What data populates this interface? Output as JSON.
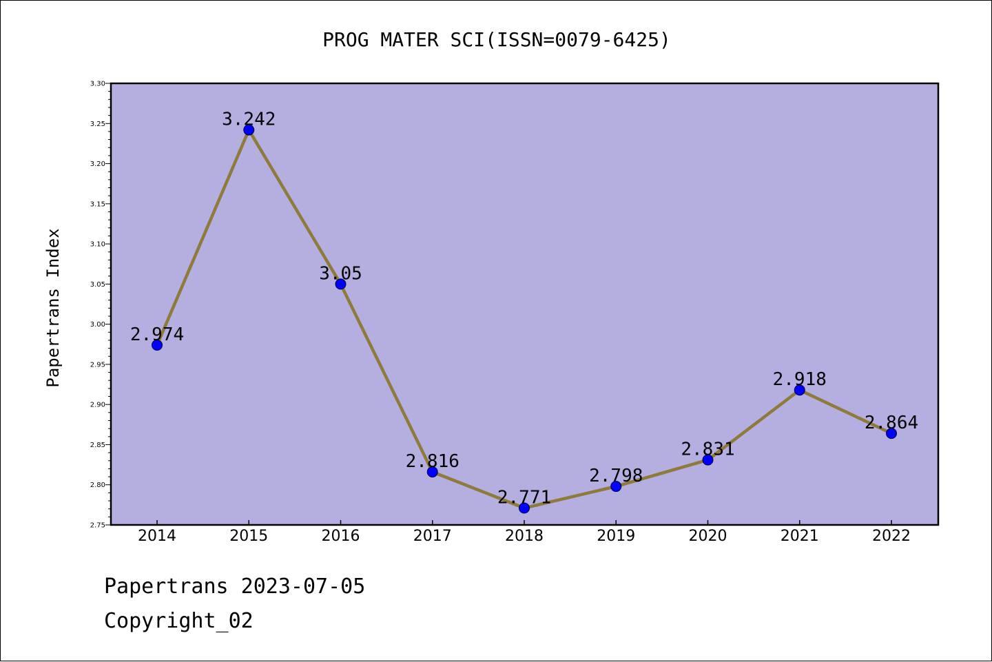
{
  "chart_data": {
    "type": "line",
    "title": "PROG MATER SCI(ISSN=0079-6425)",
    "xlabel": "",
    "ylabel": "Papertrans Index",
    "categories": [
      "2014",
      "2015",
      "2016",
      "2017",
      "2018",
      "2019",
      "2020",
      "2021",
      "2022"
    ],
    "series": [
      {
        "values": [
          2.974,
          3.242,
          3.05,
          2.816,
          2.771,
          2.798,
          2.831,
          2.918,
          2.864
        ],
        "data_labels": [
          "2.974",
          "3.242",
          "3.05",
          "2.816",
          "2.771",
          "2.798",
          "2.831",
          "2.918",
          "2.864"
        ]
      }
    ],
    "ylim": [
      2.75,
      3.3
    ],
    "yticks": [
      "2.75",
      "2.80",
      "2.85",
      "2.90",
      "2.95",
      "3.00",
      "3.05",
      "3.10",
      "3.15",
      "3.20",
      "3.25",
      "3.30"
    ],
    "grid": false,
    "legend": "none",
    "colors": {
      "plot_background": "#b5aee1",
      "line": "#8f7a3a",
      "marker": "#0000ff"
    }
  },
  "footer": {
    "line1": "Papertrans 2023-07-05",
    "line2": "Copyright_02"
  }
}
